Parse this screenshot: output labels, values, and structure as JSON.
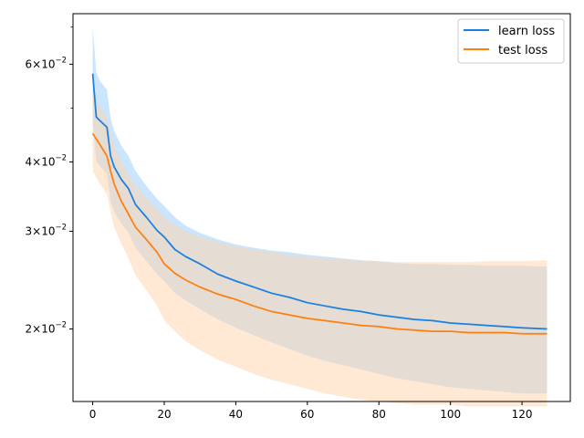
{
  "chart_data": {
    "type": "line",
    "title": "",
    "xlabel": "",
    "ylabel": "",
    "xlim": [
      -5.5,
      133.5
    ],
    "ylim": [
      0.0148,
      0.074
    ],
    "yscale": "log",
    "grid": false,
    "legend_position": "top-right",
    "x_ticks": [
      {
        "value": 0,
        "label": "0"
      },
      {
        "value": 20,
        "label": "20"
      },
      {
        "value": 40,
        "label": "40"
      },
      {
        "value": 60,
        "label": "60"
      },
      {
        "value": 80,
        "label": "80"
      },
      {
        "value": 100,
        "label": "100"
      },
      {
        "value": 120,
        "label": "120"
      }
    ],
    "y_ticks": [
      {
        "value": 0.02,
        "base": "2",
        "exp": "−2"
      },
      {
        "value": 0.03,
        "base": "3",
        "exp": "−2"
      },
      {
        "value": 0.04,
        "base": "4",
        "exp": "−2"
      },
      {
        "value": 0.06,
        "base": "6",
        "exp": "−2"
      }
    ],
    "y_minor_ticks": [
      0.05,
      0.07
    ],
    "x": [
      0,
      1,
      2,
      4,
      5,
      6,
      8,
      10,
      12,
      15,
      18,
      20,
      23,
      26,
      30,
      35,
      40,
      45,
      50,
      55,
      60,
      65,
      70,
      75,
      80,
      85,
      90,
      95,
      100,
      105,
      110,
      115,
      120,
      127
    ],
    "series": [
      {
        "name": "learn loss",
        "color": "#1f77b4",
        "line_color": "#1a80e0",
        "band_color": "#a9d4ff",
        "values": [
          0.0577,
          0.0482,
          0.0475,
          0.0462,
          0.041,
          0.0392,
          0.0372,
          0.0358,
          0.0335,
          0.0318,
          0.0301,
          0.0293,
          0.0278,
          0.027,
          0.0262,
          0.0251,
          0.0244,
          0.0238,
          0.0232,
          0.0228,
          0.0223,
          0.022,
          0.0217,
          0.0215,
          0.0212,
          0.021,
          0.0208,
          0.0207,
          0.0205,
          0.0204,
          0.0203,
          0.0202,
          0.0201,
          0.02
        ],
        "upper": [
          0.07,
          0.058,
          0.056,
          0.054,
          0.048,
          0.0455,
          0.0428,
          0.041,
          0.0385,
          0.0362,
          0.0343,
          0.0333,
          0.0318,
          0.0307,
          0.0298,
          0.029,
          0.0284,
          0.028,
          0.0277,
          0.0275,
          0.0272,
          0.027,
          0.0268,
          0.0266,
          0.0265,
          0.0263,
          0.0262,
          0.0262,
          0.0261,
          0.0261,
          0.026,
          0.026,
          0.026,
          0.0259
        ],
        "lower": [
          0.047,
          0.04,
          0.0393,
          0.038,
          0.034,
          0.0325,
          0.031,
          0.0298,
          0.028,
          0.0265,
          0.0251,
          0.0244,
          0.0232,
          0.0225,
          0.0217,
          0.0208,
          0.0201,
          0.0195,
          0.0189,
          0.0184,
          0.0179,
          0.0175,
          0.0172,
          0.0169,
          0.0166,
          0.0163,
          0.0161,
          0.0159,
          0.0157,
          0.0156,
          0.0155,
          0.0154,
          0.0153,
          0.0153
        ]
      },
      {
        "name": "test loss",
        "color": "#ff7f0e",
        "line_color": "#ff7f0e",
        "band_color": "#ffd3aa",
        "values": [
          0.045,
          0.044,
          0.043,
          0.041,
          0.0385,
          0.0365,
          0.034,
          0.0322,
          0.0305,
          0.029,
          0.0275,
          0.0262,
          0.0252,
          0.0245,
          0.0238,
          0.0231,
          0.0226,
          0.022,
          0.0215,
          0.0212,
          0.0209,
          0.0207,
          0.0205,
          0.0203,
          0.0202,
          0.02,
          0.0199,
          0.0198,
          0.0198,
          0.0197,
          0.0197,
          0.0197,
          0.0196,
          0.0196
        ],
        "upper": [
          0.053,
          0.0515,
          0.0505,
          0.048,
          0.0452,
          0.043,
          0.04,
          0.038,
          0.0362,
          0.0345,
          0.033,
          0.0318,
          0.0308,
          0.03,
          0.0293,
          0.0287,
          0.0282,
          0.0278,
          0.0275,
          0.0272,
          0.027,
          0.0268,
          0.0267,
          0.0266,
          0.0265,
          0.0264,
          0.0264,
          0.0264,
          0.0264,
          0.0264,
          0.0265,
          0.0265,
          0.0265,
          0.0266
        ],
        "lower": [
          0.0385,
          0.0375,
          0.0365,
          0.035,
          0.0325,
          0.0305,
          0.0285,
          0.0268,
          0.025,
          0.0235,
          0.022,
          0.0207,
          0.0198,
          0.019,
          0.0183,
          0.0176,
          0.0171,
          0.0166,
          0.0162,
          0.0159,
          0.0156,
          0.0153,
          0.0151,
          0.0149,
          0.0148,
          0.0147,
          0.0146,
          0.0146,
          0.0146,
          0.0145,
          0.0145,
          0.0145,
          0.0145,
          0.0145
        ]
      }
    ]
  }
}
